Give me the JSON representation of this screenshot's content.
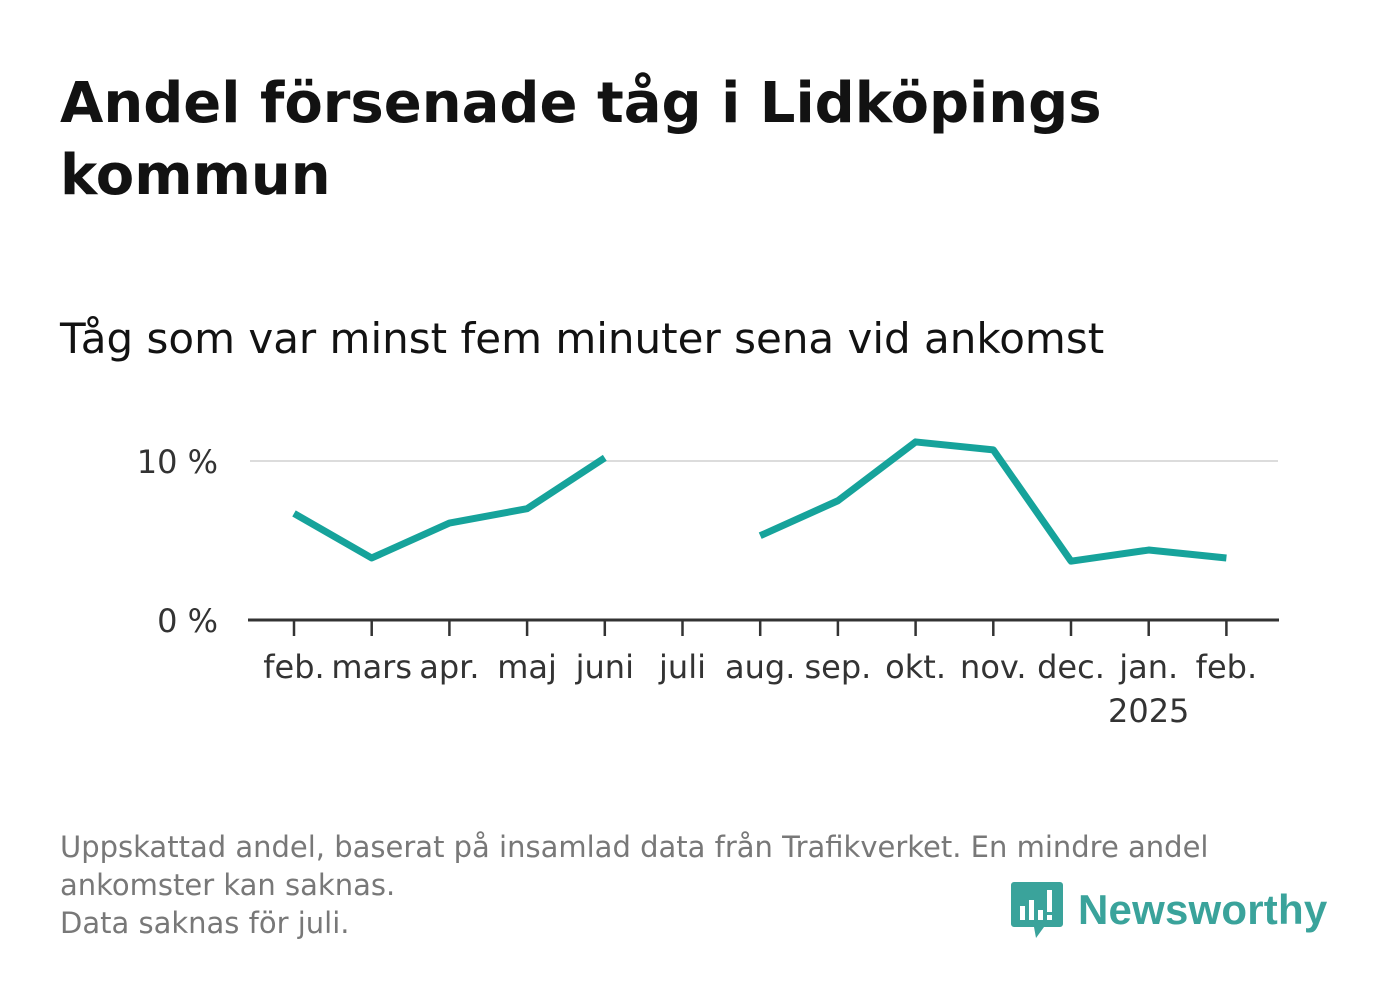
{
  "title": "Andel försenade tåg i Lidköpings kommun",
  "subtitle": "Tåg som var minst fem minuter sena vid ankomst",
  "footer": {
    "line1": "Uppskattad andel, baserat på insamlad data från Trafikverket. En mindre andel",
    "line2": "ankomster kan saknas.",
    "line3": "Data saknas för juli."
  },
  "logo": {
    "text": "Newsworthy",
    "icon": "bar-chart-speech-bubble-icon",
    "color": "#3aa39b"
  },
  "chart_data": {
    "type": "line",
    "categories": [
      "feb.",
      "mars",
      "apr.",
      "maj",
      "juni",
      "juli",
      "aug.",
      "sep.",
      "okt.",
      "nov.",
      "dec.",
      "jan.",
      "feb."
    ],
    "category_sublabels": [
      "",
      "",
      "",
      "",
      "",
      "",
      "",
      "",
      "",
      "",
      "",
      "2025",
      ""
    ],
    "series": [
      {
        "values": [
          6.7,
          3.9,
          6.1,
          7.0,
          10.2,
          null,
          5.3,
          7.5,
          11.2,
          10.7,
          3.7,
          4.4,
          3.9
        ],
        "color": "#16a39b"
      }
    ],
    "yticks": [
      0,
      10
    ],
    "ytick_labels": [
      "0 %",
      "10 %"
    ],
    "ylim": [
      0,
      12
    ],
    "grid": true,
    "missing": [
      "juli"
    ]
  }
}
